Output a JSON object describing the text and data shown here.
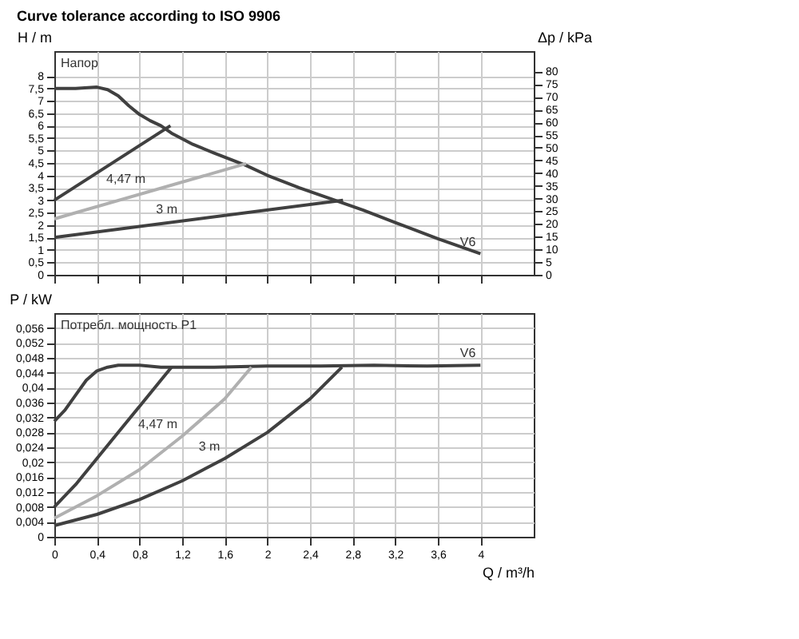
{
  "chart_data": [
    {
      "type": "line",
      "title": "Curve tolerance according to ISO 9906",
      "ylabel": "H / m",
      "y2label": "Δp / kPa",
      "annotations": [
        "Напор",
        {
          "text": "4,47 m",
          "x": 0.9,
          "y": 3.36
        },
        {
          "text": "3 m",
          "x": 1.2,
          "y": 2.16
        },
        {
          "text": "V6",
          "x": 4.0,
          "y": 0.85
        }
      ],
      "series": [
        {
          "color": "#404040",
          "x": [
            0,
            0.2,
            0.4,
            0.5,
            0.6,
            0.7,
            0.8,
            0.9,
            1.0,
            1.1,
            1.3,
            1.5,
            1.8,
            2.0,
            2.3,
            2.6,
            2.9,
            3.2,
            3.6,
            4.0
          ],
          "values": [
            7.5,
            7.5,
            7.55,
            7.45,
            7.2,
            6.8,
            6.45,
            6.2,
            6.0,
            5.7,
            5.25,
            4.9,
            4.4,
            4.0,
            3.5,
            3.05,
            2.6,
            2.1,
            1.45,
            0.85
          ]
        },
        {
          "color": "#404040",
          "x": [
            0,
            1.09
          ],
          "values": [
            3.0,
            6.0
          ]
        },
        {
          "color": "#b0b0b0",
          "x": [
            0,
            1.8
          ],
          "values": [
            2.25,
            4.47
          ]
        },
        {
          "color": "#404040",
          "x": [
            0,
            2.71
          ],
          "values": [
            1.5,
            3.0
          ]
        }
      ],
      "xlim": [
        0,
        4.5
      ],
      "xticks": [
        0,
        0.4,
        0.8,
        1.2,
        1.6,
        2,
        2.4,
        2.8,
        3.2,
        3.6,
        4
      ],
      "ylim": [
        0,
        9
      ],
      "yticks": [
        0,
        {
          "value": 0.5,
          "label": "0,5"
        },
        1,
        {
          "value": 1.5,
          "label": "1,5"
        },
        2,
        {
          "value": 2.5,
          "label": "2,5"
        },
        3,
        {
          "value": 3.5,
          "label": "3,5"
        },
        4,
        {
          "value": 4.5,
          "label": "4,5"
        },
        5,
        {
          "value": 5.5,
          "label": "5,5"
        },
        6,
        {
          "value": 6.5,
          "label": "6,5"
        },
        7,
        {
          "value": 7.5,
          "label": "7,5"
        },
        8
      ],
      "y2lim": [
        0,
        88
      ],
      "y2ticks": [
        0,
        5,
        10,
        15,
        20,
        25,
        30,
        35,
        40,
        45,
        50,
        55,
        60,
        65,
        70,
        75,
        80
      ],
      "grid": true,
      "tick_labels": "y",
      "legend": false,
      "marker": "none",
      "line_style": "solid"
    },
    {
      "type": "line",
      "ylabel": "P / kW",
      "xlabel": "Q / m³/h",
      "annotations": [
        "Потребл. мощность P1",
        {
          "text": "4,47 m",
          "x": 1.2,
          "y": 0.027
        },
        {
          "text": "3 m",
          "x": 1.6,
          "y": 0.021
        },
        {
          "text": "V6",
          "x": 4.0,
          "y": 0.046
        }
      ],
      "series": [
        {
          "color": "#404040",
          "x": [
            0,
            0.1,
            0.2,
            0.3,
            0.4,
            0.5,
            0.6,
            0.7,
            0.8,
            1.0,
            1.5,
            2.0,
            2.5,
            3.0,
            3.5,
            4.0
          ],
          "values": [
            0.031,
            0.034,
            0.038,
            0.042,
            0.0445,
            0.0455,
            0.046,
            0.046,
            0.046,
            0.0455,
            0.0455,
            0.0458,
            0.0458,
            0.046,
            0.0458,
            0.046
          ]
        },
        {
          "color": "#404040",
          "x": [
            0,
            0.2,
            0.4,
            0.6,
            0.8,
            1.0,
            1.1
          ],
          "values": [
            0.008,
            0.014,
            0.021,
            0.028,
            0.035,
            0.042,
            0.0455
          ]
        },
        {
          "color": "#b0b0b0",
          "x": [
            0,
            0.4,
            0.8,
            1.2,
            1.6,
            1.85
          ],
          "values": [
            0.005,
            0.011,
            0.018,
            0.027,
            0.037,
            0.0455
          ]
        },
        {
          "color": "#404040",
          "x": [
            0,
            0.4,
            0.8,
            1.2,
            1.6,
            2.0,
            2.4,
            2.7
          ],
          "values": [
            0.003,
            0.006,
            0.01,
            0.015,
            0.021,
            0.028,
            0.037,
            0.0455
          ]
        }
      ],
      "xlim": [
        0,
        4.5
      ],
      "xticks": [
        0,
        {
          "value": 0.4,
          "label": "0,4"
        },
        {
          "value": 0.8,
          "label": "0,8"
        },
        {
          "value": 1.2,
          "label": "1,2"
        },
        {
          "value": 1.6,
          "label": "1,6"
        },
        2,
        {
          "value": 2.4,
          "label": "2,4"
        },
        {
          "value": 2.8,
          "label": "2,8"
        },
        {
          "value": 3.2,
          "label": "3,2"
        },
        {
          "value": 3.6,
          "label": "3,6"
        },
        4
      ],
      "ylim": [
        0,
        0.06
      ],
      "yticks": [
        0,
        {
          "value": 0.004,
          "label": "0,004"
        },
        {
          "value": 0.008,
          "label": "0,008"
        },
        {
          "value": 0.012,
          "label": "0,012"
        },
        {
          "value": 0.016,
          "label": "0,016"
        },
        {
          "value": 0.02,
          "label": "0,02"
        },
        {
          "value": 0.024,
          "label": "0,024"
        },
        {
          "value": 0.028,
          "label": "0,028"
        },
        {
          "value": 0.032,
          "label": "0,032"
        },
        {
          "value": 0.036,
          "label": "0,036"
        },
        {
          "value": 0.04,
          "label": "0,04"
        },
        {
          "value": 0.044,
          "label": "0,044"
        },
        {
          "value": 0.048,
          "label": "0,048"
        },
        {
          "value": 0.052,
          "label": "0,052"
        },
        {
          "value": 0.056,
          "label": "0,056"
        }
      ],
      "grid": true,
      "legend": false,
      "marker": "none",
      "line_style": "solid"
    }
  ]
}
